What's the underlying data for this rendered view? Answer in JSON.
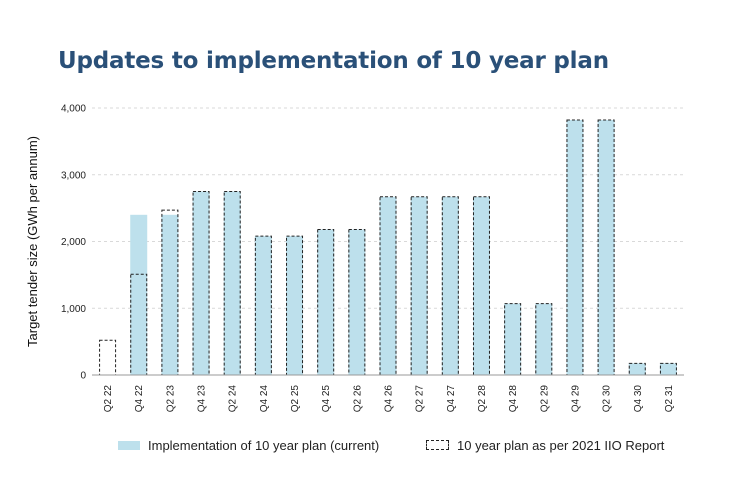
{
  "chart_data": {
    "type": "bar",
    "title": "Updates to implementation of 10 year plan",
    "ylabel": "Target tender size (GWh per annum)",
    "xlabel": "",
    "ylim": [
      0,
      4000
    ],
    "yticks": [
      "0",
      "1,000",
      "2,000",
      "3,000",
      "4,000"
    ],
    "ytick_values": [
      0,
      1000,
      2000,
      3000,
      4000
    ],
    "grid": true,
    "legend_position": "bottom",
    "categories": [
      "Q2 22",
      "Q4 22",
      "Q2 23",
      "Q4 23",
      "Q2 24",
      "Q4 24",
      "Q2 25",
      "Q4 25",
      "Q2 26",
      "Q4 26",
      "Q2 27",
      "Q4 27",
      "Q2 28",
      "Q4 28",
      "Q2 29",
      "Q4 29",
      "Q2 30",
      "Q4 30",
      "Q2 31"
    ],
    "series": [
      {
        "name": "Implementation of 10 year plan (current)",
        "style": "filled",
        "color": "#bde0ec",
        "values": [
          0,
          2400,
          2400,
          2750,
          2750,
          2080,
          2080,
          2180,
          2180,
          2670,
          2670,
          2670,
          2670,
          1070,
          1070,
          3820,
          3820,
          175,
          175
        ]
      },
      {
        "name": "10 year plan as per 2021 IIO Report",
        "style": "dashed-outline",
        "color": "#222222",
        "values": [
          520,
          1510,
          2470,
          2750,
          2750,
          2080,
          2080,
          2180,
          2180,
          2670,
          2670,
          2670,
          2670,
          1070,
          1070,
          3820,
          3820,
          175,
          175
        ]
      }
    ]
  }
}
